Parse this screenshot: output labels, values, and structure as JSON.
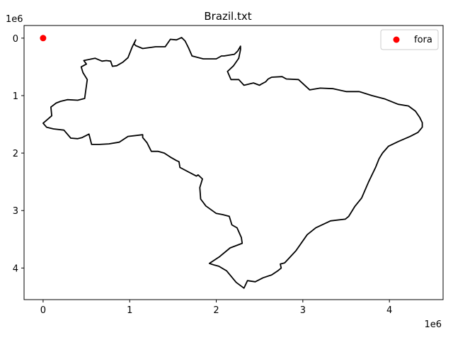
{
  "chart_data": {
    "type": "scatter",
    "title": "Brazil.txt",
    "xlabel": "",
    "ylabel": "",
    "x_offset_label": "1e6",
    "y_offset_label": "1e6",
    "xlim": [
      -0.22,
      4.62
    ],
    "ylim": [
      4.55,
      -0.22
    ],
    "y_inverted": true,
    "x_ticks": [
      0,
      1,
      2,
      3,
      4
    ],
    "y_ticks": [
      0,
      1,
      2,
      3,
      4
    ],
    "x_tick_labels": [
      "0",
      "1",
      "2",
      "3",
      "4"
    ],
    "y_tick_labels": [
      "0",
      "1",
      "2",
      "3",
      "4"
    ],
    "grid": false,
    "legend_position": "top-right",
    "series": [
      {
        "name": "fora",
        "kind": "point",
        "color": "#ff0000",
        "x": [
          0.0
        ],
        "y": [
          0.0
        ]
      },
      {
        "kind": "outline",
        "color": "#000000",
        "x": [
          1.07,
          1.15,
          1.3,
          1.41,
          1.47,
          1.54,
          1.6,
          1.64,
          1.68,
          1.72,
          1.85,
          2.0,
          2.06,
          2.09,
          2.21,
          2.25,
          2.28,
          2.28,
          2.26,
          2.2,
          2.13,
          2.17,
          2.26,
          2.32,
          2.43,
          2.5,
          2.52,
          2.57,
          2.6,
          2.64,
          2.76,
          2.81,
          2.95,
          3.08,
          3.2,
          3.35,
          3.5,
          3.65,
          3.8,
          3.95,
          4.1,
          4.22,
          4.3,
          4.35,
          4.38,
          4.38,
          4.33,
          4.24,
          4.1,
          3.99,
          3.92,
          3.9,
          3.88,
          3.84,
          3.76,
          3.68,
          3.6,
          3.53,
          3.49,
          3.32,
          3.15,
          3.05,
          2.92,
          2.79,
          2.74,
          2.75,
          2.71,
          2.64,
          2.54,
          2.45,
          2.36,
          2.32,
          2.23,
          2.12,
          2.03,
          1.98,
          1.92,
          2.04,
          2.16,
          2.3,
          2.29,
          2.24,
          2.18,
          2.15,
          2.07,
          2.0,
          1.88,
          1.82,
          1.81,
          1.84,
          1.79,
          1.77,
          1.58,
          1.57,
          1.54,
          1.47,
          1.4,
          1.33,
          1.25,
          1.2,
          1.15,
          1.15,
          0.98,
          0.88,
          0.76,
          0.65,
          0.56,
          0.53,
          0.45,
          0.4,
          0.32,
          0.24,
          0.12,
          0.04,
          0.0,
          0.1,
          0.09,
          0.15,
          0.2,
          0.28,
          0.4,
          0.48,
          0.51,
          0.46,
          0.44,
          0.5,
          0.47,
          0.47,
          0.6,
          0.68,
          0.73,
          0.78,
          0.8,
          0.85,
          0.92,
          0.98,
          1.03,
          1.07,
          1.05,
          1.07
        ],
        "y": [
          0.13,
          0.18,
          0.15,
          0.15,
          0.02,
          0.03,
          -0.01,
          0.05,
          0.17,
          0.31,
          0.36,
          0.36,
          0.31,
          0.31,
          0.28,
          0.22,
          0.14,
          0.2,
          0.35,
          0.48,
          0.58,
          0.72,
          0.72,
          0.82,
          0.78,
          0.82,
          0.8,
          0.76,
          0.71,
          0.68,
          0.67,
          0.71,
          0.72,
          0.9,
          0.87,
          0.88,
          0.93,
          0.93,
          1.0,
          1.06,
          1.15,
          1.18,
          1.27,
          1.38,
          1.47,
          1.55,
          1.64,
          1.71,
          1.8,
          1.88,
          2.0,
          2.05,
          2.1,
          2.25,
          2.5,
          2.78,
          2.93,
          3.1,
          3.15,
          3.18,
          3.3,
          3.42,
          3.7,
          3.91,
          3.93,
          4.0,
          4.05,
          4.12,
          4.17,
          4.24,
          4.22,
          4.35,
          4.25,
          4.05,
          3.97,
          3.95,
          3.92,
          3.8,
          3.65,
          3.57,
          3.47,
          3.3,
          3.25,
          3.1,
          3.07,
          3.05,
          2.92,
          2.8,
          2.6,
          2.45,
          2.38,
          2.4,
          2.25,
          2.15,
          2.13,
          2.07,
          2.0,
          1.97,
          1.97,
          1.82,
          1.73,
          1.68,
          1.71,
          1.81,
          1.84,
          1.85,
          1.85,
          1.67,
          1.73,
          1.75,
          1.74,
          1.6,
          1.58,
          1.55,
          1.48,
          1.35,
          1.2,
          1.13,
          1.1,
          1.07,
          1.08,
          1.05,
          0.72,
          0.6,
          0.5,
          0.45,
          0.39,
          0.39,
          0.35,
          0.4,
          0.39,
          0.4,
          0.49,
          0.48,
          0.42,
          0.34,
          0.15,
          0.03,
          0.1,
          0.13
        ]
      }
    ]
  }
}
